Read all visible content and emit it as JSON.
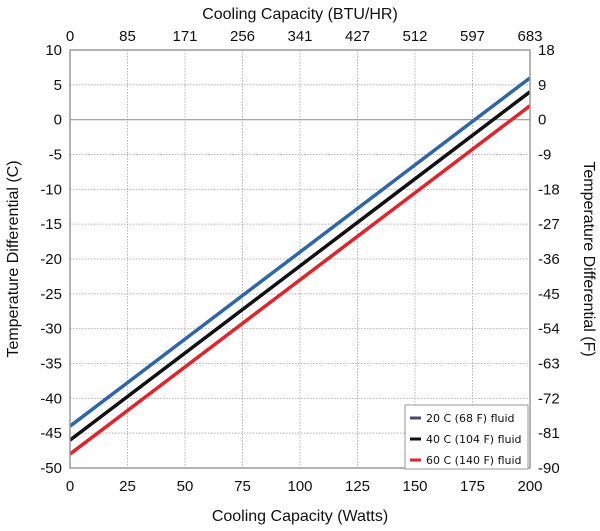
{
  "chart_data": {
    "type": "line",
    "xlabel": "Cooling Capacity (Watts)",
    "x2label": "Cooling Capacity (BTU/HR)",
    "ylabel": "Temperature Differential (C)",
    "y2label": "Temperature Differential (F)",
    "xlim": [
      0,
      200
    ],
    "ylim": [
      -50,
      10
    ],
    "y2lim": [
      -90,
      18
    ],
    "x_ticks": [
      "0",
      "25",
      "50",
      "75",
      "100",
      "125",
      "150",
      "175",
      "200"
    ],
    "x2_ticks": [
      "0",
      "85",
      "171",
      "256",
      "341",
      "427",
      "512",
      "597",
      "683"
    ],
    "y_ticks": [
      "10",
      "5",
      "0",
      "-5",
      "-10",
      "-15",
      "-20",
      "-25",
      "-30",
      "-35",
      "-40",
      "-45",
      "-50"
    ],
    "y2_ticks": [
      "18",
      "9",
      "0",
      "-9",
      "-18",
      "-27",
      "-36",
      "-45",
      "-54",
      "-63",
      "-72",
      "-81",
      "-90"
    ],
    "grid": true,
    "legend_position": "bottom-right",
    "series": [
      {
        "name": "20 C (68 F) fluid",
        "color": "#2e67a8",
        "x": [
          0,
          200
        ],
        "y": [
          -44,
          6
        ]
      },
      {
        "name": "40 C (104 F) fluid",
        "color": "#111111",
        "x": [
          0,
          200
        ],
        "y": [
          -46,
          4
        ]
      },
      {
        "name": "60 C (140 F) fluid",
        "color": "#e3232b",
        "x": [
          0,
          200
        ],
        "y": [
          -48,
          2
        ]
      }
    ]
  }
}
